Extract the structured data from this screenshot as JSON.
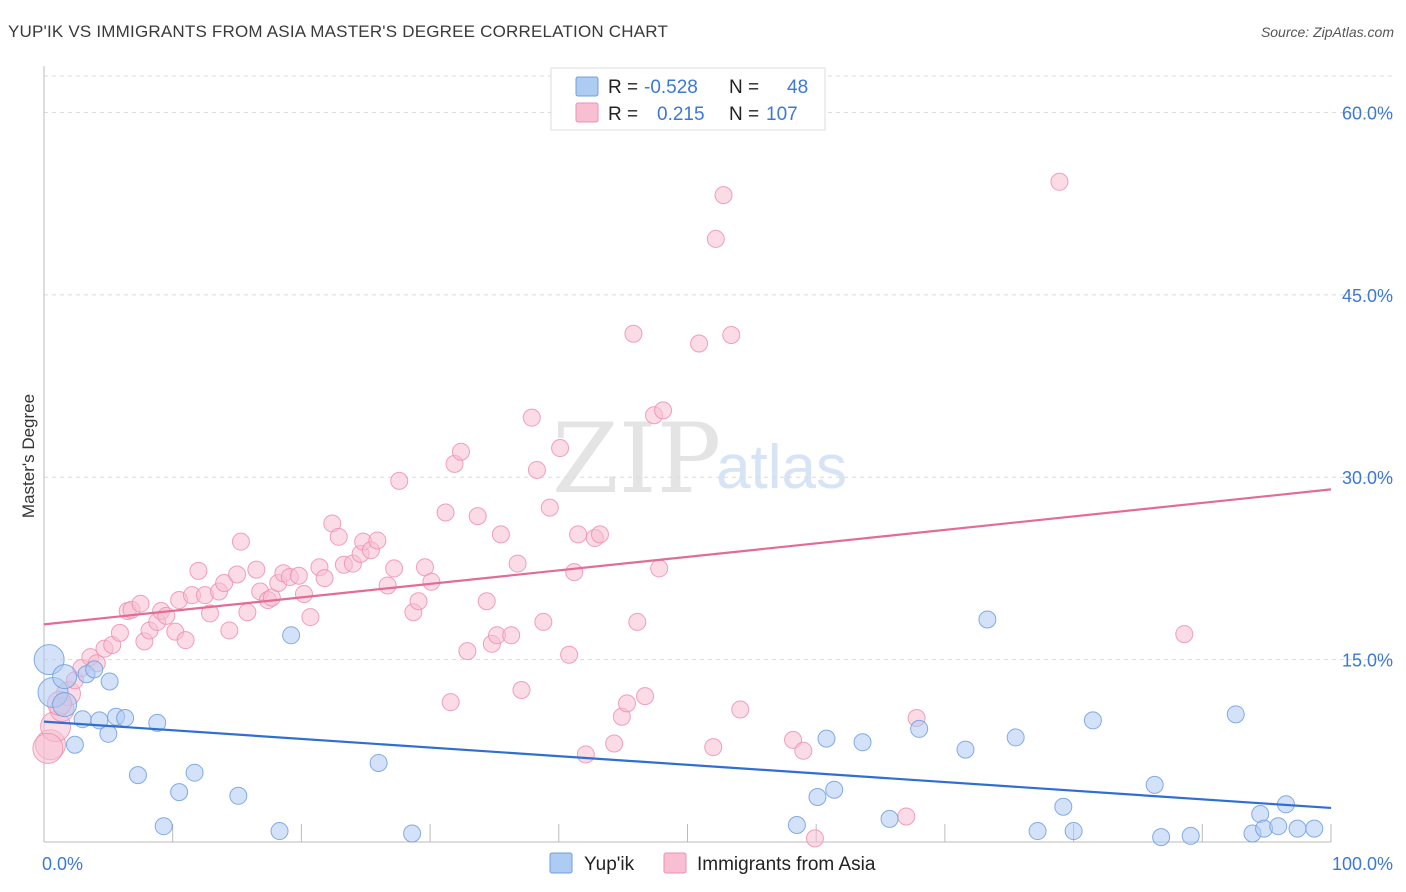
{
  "header": {
    "title": "YUP'IK VS IMMIGRANTS FROM ASIA MASTER'S DEGREE CORRELATION CHART",
    "source": "Source: ZipAtlas.com"
  },
  "watermark": {
    "zip": "ZIP",
    "atlas": "atlas"
  },
  "stats_box": {
    "rows": [
      {
        "r_label": "R =",
        "r_value": "-0.528",
        "n_label": "N =",
        "n_value": "48",
        "color": "#aecbf2"
      },
      {
        "r_label": "R =",
        "r_value": "0.215",
        "n_label": "N =",
        "n_value": "107",
        "color": "#f8bfd2"
      }
    ]
  },
  "chart_data": {
    "type": "scatter",
    "title": "YUP'IK VS IMMIGRANTS FROM ASIA MASTER'S DEGREE CORRELATION CHART",
    "xlabel": "",
    "ylabel": "Master's Degree",
    "xlim": [
      0,
      100
    ],
    "ylim": [
      0,
      63
    ],
    "x_tick_labels": [
      {
        "value": 0,
        "label": "0.0%"
      },
      {
        "value": 100,
        "label": "100.0%"
      }
    ],
    "y_tick_labels": [
      {
        "value": 15,
        "label": "15.0%"
      },
      {
        "value": 30,
        "label": "30.0%"
      },
      {
        "value": 45,
        "label": "45.0%"
      },
      {
        "value": 60,
        "label": "60.0%"
      }
    ],
    "y_gridlines": [
      15,
      30,
      45,
      60
    ],
    "x_minor_ticks": [
      10,
      20,
      30,
      40,
      50,
      60,
      70,
      80,
      90
    ],
    "grid": true,
    "legend": "bottom-center",
    "series": [
      {
        "name": "Yup'ik",
        "color": "#6f9fe0",
        "fill": "#aecbf2",
        "line_color": "#2e6fd1",
        "trend": {
          "x": [
            0,
            100
          ],
          "y": [
            9.9,
            2.8
          ]
        },
        "points": [
          {
            "x": 0.4,
            "y": 15.0
          },
          {
            "x": 0.7,
            "y": 12.3
          },
          {
            "x": 1.6,
            "y": 13.6
          },
          {
            "x": 1.6,
            "y": 11.3
          },
          {
            "x": 2.4,
            "y": 8.0
          },
          {
            "x": 3.0,
            "y": 10.1
          },
          {
            "x": 3.3,
            "y": 13.8
          },
          {
            "x": 3.9,
            "y": 14.2
          },
          {
            "x": 4.3,
            "y": 10.0
          },
          {
            "x": 5.0,
            "y": 8.9
          },
          {
            "x": 5.1,
            "y": 13.2
          },
          {
            "x": 5.6,
            "y": 10.3
          },
          {
            "x": 6.3,
            "y": 10.2
          },
          {
            "x": 7.3,
            "y": 5.5
          },
          {
            "x": 8.8,
            "y": 9.8
          },
          {
            "x": 9.3,
            "y": 1.3
          },
          {
            "x": 10.5,
            "y": 4.1
          },
          {
            "x": 11.7,
            "y": 5.7
          },
          {
            "x": 15.1,
            "y": 3.8
          },
          {
            "x": 18.3,
            "y": 0.9
          },
          {
            "x": 19.2,
            "y": 17.0
          },
          {
            "x": 26.0,
            "y": 6.5
          },
          {
            "x": 28.6,
            "y": 0.7
          },
          {
            "x": 58.5,
            "y": 1.4
          },
          {
            "x": 60.1,
            "y": 3.7
          },
          {
            "x": 60.8,
            "y": 8.5
          },
          {
            "x": 61.4,
            "y": 4.3
          },
          {
            "x": 63.6,
            "y": 8.2
          },
          {
            "x": 65.7,
            "y": 1.9
          },
          {
            "x": 68.0,
            "y": 9.3
          },
          {
            "x": 71.6,
            "y": 7.6
          },
          {
            "x": 73.3,
            "y": 18.3
          },
          {
            "x": 75.5,
            "y": 8.6
          },
          {
            "x": 77.2,
            "y": 0.9
          },
          {
            "x": 79.2,
            "y": 2.9
          },
          {
            "x": 80.0,
            "y": 0.9
          },
          {
            "x": 81.5,
            "y": 10.0
          },
          {
            "x": 86.3,
            "y": 4.7
          },
          {
            "x": 86.8,
            "y": 0.4
          },
          {
            "x": 89.1,
            "y": 0.5
          },
          {
            "x": 92.6,
            "y": 10.5
          },
          {
            "x": 93.9,
            "y": 0.7
          },
          {
            "x": 94.5,
            "y": 2.3
          },
          {
            "x": 94.8,
            "y": 1.1
          },
          {
            "x": 95.9,
            "y": 1.3
          },
          {
            "x": 97.4,
            "y": 1.1
          },
          {
            "x": 96.5,
            "y": 3.1
          },
          {
            "x": 98.7,
            "y": 1.1
          }
        ]
      },
      {
        "name": "Immigrants from Asia",
        "color": "#ee8fb0",
        "fill": "#f8bfd2",
        "line_color": "#e36b96",
        "trend": {
          "x": [
            0,
            100
          ],
          "y": [
            17.9,
            29.0
          ]
        },
        "points": [
          {
            "x": 0.5,
            "y": 8.0
          },
          {
            "x": 0.9,
            "y": 9.5
          },
          {
            "x": 1.4,
            "y": 10.9
          },
          {
            "x": 1.9,
            "y": 12.2
          },
          {
            "x": 2.4,
            "y": 13.3
          },
          {
            "x": 2.9,
            "y": 14.3
          },
          {
            "x": 3.6,
            "y": 15.2
          },
          {
            "x": 4.1,
            "y": 14.7
          },
          {
            "x": 4.7,
            "y": 15.9
          },
          {
            "x": 5.3,
            "y": 16.2
          },
          {
            "x": 5.9,
            "y": 17.2
          },
          {
            "x": 6.5,
            "y": 19.0
          },
          {
            "x": 6.8,
            "y": 19.1
          },
          {
            "x": 7.5,
            "y": 19.6
          },
          {
            "x": 7.8,
            "y": 16.5
          },
          {
            "x": 8.2,
            "y": 17.4
          },
          {
            "x": 8.8,
            "y": 18.1
          },
          {
            "x": 9.1,
            "y": 19.0
          },
          {
            "x": 9.5,
            "y": 18.6
          },
          {
            "x": 10.2,
            "y": 17.3
          },
          {
            "x": 10.5,
            "y": 19.9
          },
          {
            "x": 11.0,
            "y": 16.6
          },
          {
            "x": 11.5,
            "y": 20.3
          },
          {
            "x": 12.0,
            "y": 22.3
          },
          {
            "x": 12.5,
            "y": 20.3
          },
          {
            "x": 12.9,
            "y": 18.8
          },
          {
            "x": 13.6,
            "y": 20.6
          },
          {
            "x": 14.0,
            "y": 21.3
          },
          {
            "x": 14.4,
            "y": 17.4
          },
          {
            "x": 15.0,
            "y": 22.0
          },
          {
            "x": 15.3,
            "y": 24.7
          },
          {
            "x": 15.8,
            "y": 18.9
          },
          {
            "x": 16.5,
            "y": 22.4
          },
          {
            "x": 16.8,
            "y": 20.6
          },
          {
            "x": 17.4,
            "y": 19.9
          },
          {
            "x": 17.7,
            "y": 20.1
          },
          {
            "x": 18.2,
            "y": 21.3
          },
          {
            "x": 18.6,
            "y": 22.1
          },
          {
            "x": 19.1,
            "y": 21.8
          },
          {
            "x": 19.8,
            "y": 21.9
          },
          {
            "x": 20.2,
            "y": 20.4
          },
          {
            "x": 20.7,
            "y": 18.5
          },
          {
            "x": 21.4,
            "y": 22.6
          },
          {
            "x": 21.8,
            "y": 21.7
          },
          {
            "x": 22.4,
            "y": 26.2
          },
          {
            "x": 22.9,
            "y": 25.1
          },
          {
            "x": 23.3,
            "y": 22.8
          },
          {
            "x": 24.0,
            "y": 22.9
          },
          {
            "x": 24.6,
            "y": 23.7
          },
          {
            "x": 24.8,
            "y": 24.7
          },
          {
            "x": 25.4,
            "y": 24.0
          },
          {
            "x": 25.9,
            "y": 24.8
          },
          {
            "x": 26.7,
            "y": 21.1
          },
          {
            "x": 27.2,
            "y": 22.5
          },
          {
            "x": 27.6,
            "y": 29.7
          },
          {
            "x": 28.7,
            "y": 18.9
          },
          {
            "x": 29.1,
            "y": 19.8
          },
          {
            "x": 29.6,
            "y": 22.6
          },
          {
            "x": 30.1,
            "y": 21.4
          },
          {
            "x": 31.2,
            "y": 27.1
          },
          {
            "x": 31.6,
            "y": 11.5
          },
          {
            "x": 31.9,
            "y": 31.1
          },
          {
            "x": 32.4,
            "y": 32.1
          },
          {
            "x": 32.9,
            "y": 15.7
          },
          {
            "x": 33.7,
            "y": 26.8
          },
          {
            "x": 34.4,
            "y": 19.8
          },
          {
            "x": 34.8,
            "y": 16.3
          },
          {
            "x": 35.2,
            "y": 17.0
          },
          {
            "x": 35.5,
            "y": 25.3
          },
          {
            "x": 36.3,
            "y": 17.0
          },
          {
            "x": 36.8,
            "y": 22.9
          },
          {
            "x": 37.1,
            "y": 12.5
          },
          {
            "x": 37.9,
            "y": 34.9
          },
          {
            "x": 38.3,
            "y": 30.6
          },
          {
            "x": 38.8,
            "y": 18.1
          },
          {
            "x": 39.3,
            "y": 27.5
          },
          {
            "x": 40.1,
            "y": 32.4
          },
          {
            "x": 40.8,
            "y": 15.4
          },
          {
            "x": 41.2,
            "y": 22.2
          },
          {
            "x": 41.5,
            "y": 25.3
          },
          {
            "x": 42.1,
            "y": 7.2
          },
          {
            "x": 42.8,
            "y": 25.0
          },
          {
            "x": 43.2,
            "y": 25.3
          },
          {
            "x": 44.3,
            "y": 8.1
          },
          {
            "x": 44.9,
            "y": 10.3
          },
          {
            "x": 45.3,
            "y": 11.4
          },
          {
            "x": 45.8,
            "y": 41.8
          },
          {
            "x": 46.1,
            "y": 18.1
          },
          {
            "x": 46.7,
            "y": 12.0
          },
          {
            "x": 47.4,
            "y": 35.1
          },
          {
            "x": 47.8,
            "y": 22.5
          },
          {
            "x": 48.1,
            "y": 35.5
          },
          {
            "x": 50.9,
            "y": 41.0
          },
          {
            "x": 52.0,
            "y": 7.8
          },
          {
            "x": 52.2,
            "y": 49.6
          },
          {
            "x": 52.8,
            "y": 53.2
          },
          {
            "x": 53.4,
            "y": 41.7
          },
          {
            "x": 54.1,
            "y": 10.9
          },
          {
            "x": 58.2,
            "y": 8.4
          },
          {
            "x": 59.0,
            "y": 7.5
          },
          {
            "x": 67.0,
            "y": 2.1
          },
          {
            "x": 67.8,
            "y": 10.2
          },
          {
            "x": 78.9,
            "y": 54.3
          },
          {
            "x": 88.6,
            "y": 17.1
          },
          {
            "x": 0.3,
            "y": 7.7
          },
          {
            "x": 1.2,
            "y": 11.4
          },
          {
            "x": 59.9,
            "y": 0.3
          }
        ]
      }
    ]
  }
}
